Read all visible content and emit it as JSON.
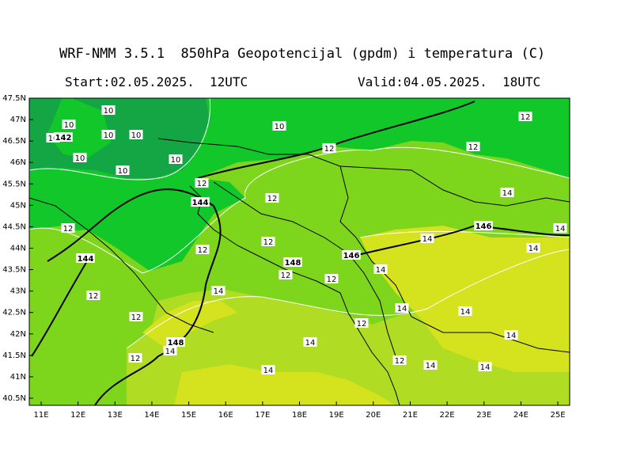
{
  "header": {
    "title": "WRF-NMM 3.5.1  850hPa Geopotencijal (gpdm) i temperatura (C)",
    "start": "Start:02.05.2025.  12UTC",
    "valid": "Valid:04.05.2025.  18UTC"
  },
  "axes": {
    "lon_ticks": [
      "11E",
      "12E",
      "13E",
      "14E",
      "15E",
      "16E",
      "17E",
      "18E",
      "19E",
      "20E",
      "21E",
      "22E",
      "23E",
      "24E",
      "25E"
    ],
    "lat_ticks": [
      "47.5N",
      "47N",
      "46.5N",
      "46N",
      "45.5N",
      "45N",
      "44.5N",
      "44N",
      "43.5N",
      "43N",
      "42.5N",
      "42N",
      "41.5N",
      "41N",
      "40.5N"
    ]
  },
  "colors": {
    "temp_10": "#14a544",
    "temp_12": "#12c72a",
    "temp_13": "#7ed61c",
    "temp_14": "#b0dc24",
    "temp_15": "#d5e21e",
    "land_border": "#000000",
    "geopotential_contour": "#000000",
    "temperature_contour": "#ffffff"
  },
  "map": {
    "temperature_labels": [
      "10",
      "10",
      "10",
      "10",
      "10",
      "10",
      "10",
      "10",
      "10",
      "12",
      "12",
      "12",
      "12",
      "12",
      "12",
      "12",
      "12",
      "12",
      "12",
      "12",
      "12",
      "12",
      "12",
      "12",
      "12",
      "14",
      "14",
      "14",
      "14",
      "14",
      "14",
      "14",
      "14",
      "14",
      "14",
      "14",
      "14",
      "14",
      "14"
    ],
    "geopotential_labels": [
      "142",
      "144",
      "144",
      "146",
      "148",
      "148",
      "146"
    ]
  }
}
